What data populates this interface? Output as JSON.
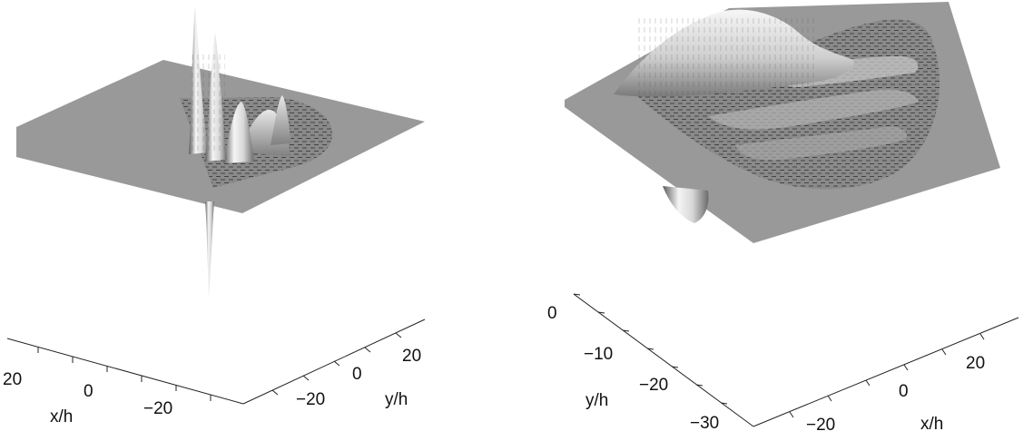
{
  "chart_data": [
    {
      "type": "surface",
      "panel": "left",
      "axes": [
        {
          "label": "x/h",
          "ticks": [
            "20",
            "0",
            "−20"
          ]
        },
        {
          "label": "y/h",
          "ticks": [
            "−20",
            "0",
            "20"
          ]
        }
      ],
      "features": [
        "two tall narrow positive peaks",
        "one deep narrow negative spike",
        "small bumps over a fan-shaped wedge region"
      ]
    },
    {
      "type": "surface",
      "panel": "right",
      "axes": [
        {
          "label": "y/h",
          "ticks": [
            "0",
            "−10",
            "−20",
            "−30"
          ]
        },
        {
          "label": "x/h",
          "ticks": [
            "−20",
            "0",
            "20"
          ]
        }
      ],
      "features": [
        "broad smooth positive hump",
        "rippled semicircular region",
        "small negative lobe below the plane"
      ]
    }
  ],
  "colors": {
    "plane": "#999999",
    "support": "#8e8e8e",
    "surface_light": "#f2f2f2",
    "surface_dark": "#6a6a6a"
  }
}
